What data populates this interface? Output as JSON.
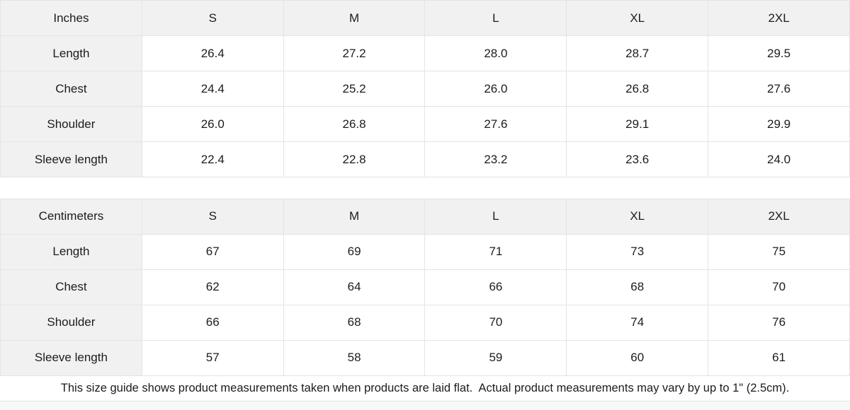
{
  "tables": [
    {
      "unit_label": "Inches",
      "sizes": [
        "S",
        "M",
        "L",
        "XL",
        "2XL"
      ],
      "rows": [
        {
          "label": "Length",
          "values": [
            "26.4",
            "27.2",
            "28.0",
            "28.7",
            "29.5"
          ]
        },
        {
          "label": "Chest",
          "values": [
            "24.4",
            "25.2",
            "26.0",
            "26.8",
            "27.6"
          ]
        },
        {
          "label": "Shoulder",
          "values": [
            "26.0",
            "26.8",
            "27.6",
            "29.1",
            "29.9"
          ]
        },
        {
          "label": "Sleeve length",
          "values": [
            "22.4",
            "22.8",
            "23.2",
            "23.6",
            "24.0"
          ]
        }
      ]
    },
    {
      "unit_label": "Centimeters",
      "sizes": [
        "S",
        "M",
        "L",
        "XL",
        "2XL"
      ],
      "rows": [
        {
          "label": "Length",
          "values": [
            "67",
            "69",
            "71",
            "73",
            "75"
          ]
        },
        {
          "label": "Chest",
          "values": [
            "62",
            "64",
            "66",
            "68",
            "70"
          ]
        },
        {
          "label": "Shoulder",
          "values": [
            "66",
            "68",
            "70",
            "74",
            "76"
          ]
        },
        {
          "label": "Sleeve length",
          "values": [
            "57",
            "58",
            "59",
            "60",
            "61"
          ]
        }
      ]
    }
  ],
  "footer": {
    "note": "This size guide shows product measurements taken when products are laid flat.  Actual product measurements may vary by up to 1\" (2.5cm)."
  },
  "colors": {
    "header_bg": "#f1f1f1",
    "cell_bg": "#ffffff",
    "border": "#e4e4e4",
    "text": "#1c1c1c",
    "bottom_strip_bg": "#f8f8f8"
  }
}
